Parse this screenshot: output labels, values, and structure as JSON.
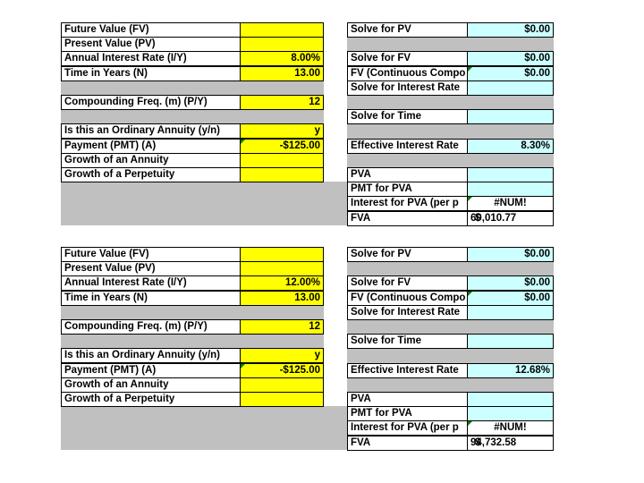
{
  "blocks": [
    {
      "left": [
        {
          "label": "Future Value (FV)"
        },
        {
          "label": "Present Value (PV)"
        },
        {
          "label": "Annual Interest Rate (I/Y)",
          "value": "8.00%"
        },
        {
          "label": "Time in Years (N)",
          "value": "13.00"
        },
        {
          "label": "Compounding Freq. (m) (P/Y)",
          "value": "12"
        },
        {
          "label": "Is this an Ordinary Annuity (y/n)",
          "value": "y"
        },
        {
          "label": "Payment (PMT) (A)",
          "value": "-$125.00"
        },
        {
          "label": "Growth of an Annuity"
        },
        {
          "label": "Growth of a Perpetuity"
        }
      ],
      "right": [
        {
          "label": "Solve for PV",
          "value": "$0.00"
        },
        {
          "label": "Solve for FV",
          "value": "$0.00"
        },
        {
          "label": "FV (Continuous Compo",
          "value": "$0.00"
        },
        {
          "label": "Solve for Interest Rate"
        },
        {
          "label": "Solve for Time"
        },
        {
          "label": "Effective Interest Rate",
          "value": "8.30%"
        },
        {
          "label": "PVA"
        },
        {
          "label": "PMT for PVA"
        },
        {
          "label": "Interest for PVA (per p",
          "value": "#NUM!"
        },
        {
          "label": "FVA",
          "prefix": "$",
          "value": "60,010.77"
        }
      ]
    },
    {
      "left": [
        {
          "label": "Future Value (FV)"
        },
        {
          "label": "Present Value (PV)"
        },
        {
          "label": "Annual Interest Rate (I/Y)",
          "value": "12.00%"
        },
        {
          "label": "Time in Years (N)",
          "value": "13.00"
        },
        {
          "label": "Compounding Freq. (m) (P/Y)",
          "value": "12"
        },
        {
          "label": "Is this an Ordinary Annuity (y/n)",
          "value": "y"
        },
        {
          "label": "Payment (PMT) (A)",
          "value": "-$125.00"
        },
        {
          "label": "Growth of an Annuity"
        },
        {
          "label": "Growth of a Perpetuity"
        }
      ],
      "right": [
        {
          "label": "Solve for PV",
          "value": "$0.00"
        },
        {
          "label": "Solve for FV",
          "value": "$0.00"
        },
        {
          "label": "FV (Continuous Compo",
          "value": "$0.00"
        },
        {
          "label": "Solve for Interest Rate"
        },
        {
          "label": "Solve for Time"
        },
        {
          "label": "Effective Interest Rate",
          "value": "12.68%"
        },
        {
          "label": "PVA"
        },
        {
          "label": "PMT for PVA"
        },
        {
          "label": "Interest for PVA (per p",
          "value": "#NUM!"
        },
        {
          "label": "FVA",
          "prefix": "$",
          "value": "94,732.58"
        }
      ]
    }
  ]
}
